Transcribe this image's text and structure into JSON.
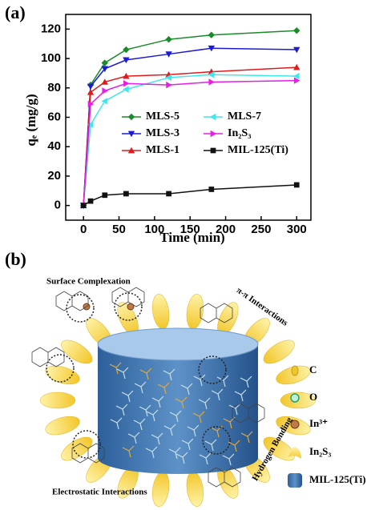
{
  "chart_data": {
    "type": "line",
    "panel_label": "(a)",
    "x_label": "Time (min)",
    "y_label": "qₑ (mg/g)",
    "x": [
      0,
      10,
      30,
      60,
      120,
      180,
      300
    ],
    "series": [
      {
        "name": "MLS-5",
        "color": "#1a8a2a",
        "marker": "diamond",
        "values": [
          0,
          82,
          97,
          106,
          113,
          116,
          119
        ]
      },
      {
        "name": "MLS-3",
        "color": "#1b1bd6",
        "marker": "triangle-down",
        "values": [
          0,
          81,
          93,
          99,
          103,
          107,
          106
        ]
      },
      {
        "name": "MLS-1",
        "color": "#e01b1b",
        "marker": "triangle-up",
        "values": [
          0,
          77,
          84,
          88,
          89,
          91,
          94
        ]
      },
      {
        "name": "MLS-7",
        "color": "#3fe6f0",
        "marker": "triangle-left",
        "values": [
          0,
          55,
          71,
          79,
          87,
          89,
          88
        ]
      },
      {
        "name": "In₂S₃",
        "color": "#e61ee6",
        "marker": "triangle-right",
        "values": [
          0,
          69,
          78,
          83,
          82,
          84,
          85
        ]
      },
      {
        "name": "MIL-125(Ti)",
        "color": "#111111",
        "marker": "square",
        "values": [
          0,
          3,
          7,
          8,
          8,
          11,
          14
        ]
      }
    ],
    "xlim": [
      -25,
      320
    ],
    "ylim": [
      -10,
      130
    ],
    "xticks": [
      0,
      50,
      100,
      150,
      200,
      250,
      300
    ],
    "yticks": [
      0,
      20,
      40,
      60,
      80,
      100,
      120
    ]
  },
  "diagram": {
    "panel_label": "(b)",
    "labels": [
      "Surface Complexation",
      "π-π Interactions",
      "Hydrogen Bonding",
      "Electrostatic Interactions"
    ],
    "legend": [
      "C",
      "O",
      "In³⁺",
      "In₂S₃",
      "MIL-125(Ti)"
    ]
  }
}
